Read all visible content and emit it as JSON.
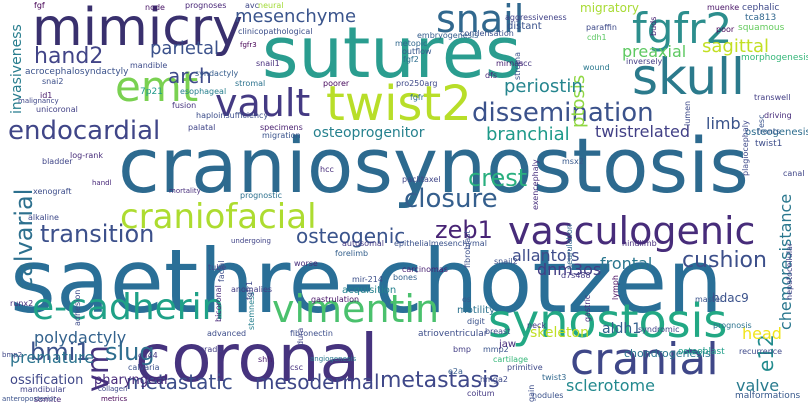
{
  "words": [
    {
      "t": "sutures",
      "c": "#2a9d8f"
    },
    {
      "t": "saethre-chotzen",
      "c": "#2a6f97"
    },
    {
      "t": "craniosynostosis",
      "c": "#2d6a8f"
    },
    {
      "t": "coronal",
      "c": "#46337e"
    },
    {
      "t": "mimicry",
      "c": "#39306e"
    },
    {
      "t": "synostosis",
      "c": "#22a884"
    },
    {
      "t": "twist2",
      "c": "#b8de29"
    },
    {
      "t": "skull",
      "c": "#2b7a8c"
    },
    {
      "t": "emt",
      "c": "#7ad151"
    },
    {
      "t": "fgfr2",
      "c": "#2c8e8d"
    },
    {
      "t": "snail",
      "c": "#31688e"
    },
    {
      "t": "vault",
      "c": "#443a83"
    },
    {
      "t": "cranial",
      "c": "#3f4788"
    },
    {
      "t": "vasculogenic",
      "c": "#472c7a"
    },
    {
      "t": "vimentin",
      "c": "#4ac16d"
    },
    {
      "t": "e-cadherin",
      "c": "#1fa187"
    },
    {
      "t": "craniofacial",
      "c": "#addc30"
    },
    {
      "t": "dissemination",
      "c": "#3b528b"
    },
    {
      "t": "endocardial",
      "c": "#404688"
    },
    {
      "t": "calvarial",
      "c": "#2d708e"
    },
    {
      "t": "hand2",
      "c": "#414487"
    },
    {
      "t": "mesenchyme",
      "c": "#3a548c"
    },
    {
      "t": "arch",
      "c": "#3e4a89"
    },
    {
      "t": "crest",
      "c": "#29af7f"
    },
    {
      "t": "closure",
      "c": "#355f8d"
    },
    {
      "t": "transition",
      "c": "#3c508b"
    },
    {
      "t": "zeb1",
      "c": "#482475"
    },
    {
      "t": "osteogenic",
      "c": "#3a548c"
    },
    {
      "t": "bmi1",
      "c": "#3b528b"
    },
    {
      "t": "slug",
      "c": "#2e6e8e"
    },
    {
      "t": "vm",
      "c": "#46327e"
    },
    {
      "t": "metastatic",
      "c": "#3d4e8a"
    },
    {
      "t": "metastasis",
      "c": "#3f4889"
    },
    {
      "t": "mesodermal",
      "c": "#3f4788"
    },
    {
      "t": "sagittal",
      "c": "#c2df23"
    },
    {
      "t": "periostin",
      "c": "#25858e"
    },
    {
      "t": "ptosis",
      "c": "#90d743"
    },
    {
      "t": "preaxial",
      "c": "#5ec962"
    },
    {
      "t": "parietal",
      "c": "#3b518b"
    },
    {
      "t": "cushion",
      "c": "#3c4f8a"
    },
    {
      "t": "branchial",
      "c": "#1f9a8a"
    },
    {
      "t": "twistrelated",
      "c": "#424086"
    },
    {
      "t": "limb",
      "c": "#3a538b"
    },
    {
      "t": "e12",
      "c": "#228b8d"
    },
    {
      "t": "valve",
      "c": "#297b8e"
    },
    {
      "t": "head",
      "c": "#f1e51d"
    },
    {
      "t": "polydactyly",
      "c": "#33628d"
    },
    {
      "t": "premature",
      "c": "#2c738e"
    },
    {
      "t": "skeleton",
      "c": "#c0df25"
    },
    {
      "t": "frontal",
      "c": "#2a768e"
    },
    {
      "t": "allantois",
      "c": "#3e4c8a"
    },
    {
      "t": "dnm3os",
      "c": "#433e85"
    },
    {
      "t": "aldh1",
      "c": "#34608d"
    },
    {
      "t": "sclerotome",
      "c": "#23898e"
    },
    {
      "t": "hdac9",
      "c": "#3b528b"
    },
    {
      "t": "chemoresistance",
      "c": "#2a778e"
    },
    {
      "t": "osteoprogenitor",
      "c": "#26818e"
    },
    {
      "t": "invasiveness",
      "c": "#287d8e"
    },
    {
      "t": "ossification",
      "c": "#3f4788"
    },
    {
      "t": "pharyngeal",
      "c": "#472a7a"
    },
    {
      "t": "migratory",
      "c": "#a8db34"
    },
    {
      "t": "chondrogenesis",
      "c": "#2b748e"
    },
    {
      "t": "osteogenesis",
      "c": "#2e6d8e"
    },
    {
      "t": "twist1",
      "c": "#3d4d8a"
    },
    {
      "t": "morphogenesis",
      "c": "#35b779"
    },
    {
      "t": "squamous",
      "c": "#65cb5e"
    },
    {
      "t": "cephalic",
      "c": "#3e4989"
    },
    {
      "t": "tca813",
      "c": "#31678e"
    },
    {
      "t": "fgf",
      "c": "#440154"
    },
    {
      "t": "node",
      "c": "#471365"
    },
    {
      "t": "prognoses",
      "c": "#482677"
    },
    {
      "t": "avc",
      "c": "#3f4788"
    },
    {
      "t": "aggressiveness",
      "c": "#414287"
    },
    {
      "t": "distant",
      "c": "#3b528b"
    },
    {
      "t": "muenke",
      "c": "#481467"
    },
    {
      "t": "paraffin",
      "c": "#3e4a89"
    },
    {
      "t": "cdh1",
      "c": "#5dc863"
    },
    {
      "t": "condensation",
      "c": "#3b518b"
    },
    {
      "t": "mirnas",
      "c": "#482071"
    },
    {
      "t": "ncc",
      "c": "#453781"
    },
    {
      "t": "wound",
      "c": "#2a788e"
    },
    {
      "t": "inversely",
      "c": "#433d84"
    },
    {
      "t": "poor",
      "c": "#46075a"
    },
    {
      "t": "buds",
      "c": "#482374"
    },
    {
      "t": "clinicopathological",
      "c": "#3c4f8a"
    },
    {
      "t": "embryogenesis",
      "c": "#355e8d"
    },
    {
      "t": "metopic",
      "c": "#31688e"
    },
    {
      "t": "syndactyly",
      "c": "#365d8d"
    },
    {
      "t": "mandible",
      "c": "#3e4c8a"
    },
    {
      "t": "stromal",
      "c": "#2c728e"
    },
    {
      "t": "esophageal",
      "c": "#277f8e"
    },
    {
      "t": "7p21",
      "c": "#1f998a"
    },
    {
      "t": "fusion",
      "c": "#46337f"
    },
    {
      "t": "haploinsufficiency",
      "c": "#3d4e8a"
    },
    {
      "t": "palatal",
      "c": "#404588"
    },
    {
      "t": "specimens",
      "c": "#481f70"
    },
    {
      "t": "migration",
      "c": "#3a548c"
    },
    {
      "t": "poorer",
      "c": "#46085c"
    },
    {
      "t": "pro250arg",
      "c": "#3e4989"
    },
    {
      "t": "dfs",
      "c": "#482878"
    },
    {
      "t": "outflow",
      "c": "#38598c"
    },
    {
      "t": "fgf2",
      "c": "#2e6f8e"
    },
    {
      "t": "snail1",
      "c": "#472f7d"
    },
    {
      "t": "unicoronal",
      "c": "#424186"
    },
    {
      "t": "id1",
      "c": "#48186a"
    },
    {
      "t": "malignancy",
      "c": "#3f4788"
    },
    {
      "t": "snai2",
      "c": "#3c4f8a"
    },
    {
      "t": "acrocephalosyndactyly",
      "c": "#3b528b"
    },
    {
      "t": "log-rank",
      "c": "#472c7a"
    },
    {
      "t": "bladder",
      "c": "#404688"
    },
    {
      "t": "xenograft",
      "c": "#3d4d8a"
    },
    {
      "t": "alkaline",
      "c": "#3e4989"
    },
    {
      "t": "handl",
      "c": "#482979"
    },
    {
      "t": "mortality",
      "c": "#472e7c"
    },
    {
      "t": "forelimb",
      "c": "#35608d"
    },
    {
      "t": "prognostic",
      "c": "#2d718e"
    },
    {
      "t": "hcc",
      "c": "#472d7b"
    },
    {
      "t": "paclitaxel",
      "c": "#404688"
    },
    {
      "t": "autosomal",
      "c": "#443983"
    },
    {
      "t": "epithelialmesenchymal",
      "c": "#3b528b"
    },
    {
      "t": "bones",
      "c": "#34618d"
    },
    {
      "t": "carcinomas",
      "c": "#482173"
    },
    {
      "t": "hindlimb",
      "c": "#472d7b"
    },
    {
      "t": "d7s488",
      "c": "#443a83"
    },
    {
      "t": "master",
      "c": "#3a548c"
    },
    {
      "t": "lymph",
      "c": "#460a5d"
    },
    {
      "t": "msx2",
      "c": "#38598c"
    },
    {
      "t": "snail2",
      "c": "#3c508b"
    },
    {
      "t": "fibroblast",
      "c": "#3c4f8a"
    },
    {
      "t": "exencephaly",
      "c": "#472f7d"
    },
    {
      "t": "neurulation",
      "c": "#31688e"
    },
    {
      "t": "runx2",
      "c": "#472e7c"
    },
    {
      "t": "somite",
      "c": "#482475"
    },
    {
      "t": "bmp2",
      "c": "#3f4788"
    },
    {
      "t": "mandibular",
      "c": "#414287"
    },
    {
      "t": "collagen",
      "c": "#3e4989"
    },
    {
      "t": "calvaria",
      "c": "#3b528b"
    },
    {
      "t": "cd44",
      "c": "#453882"
    },
    {
      "t": "grade",
      "c": "#433e85"
    },
    {
      "t": "shh",
      "c": "#481c6e"
    },
    {
      "t": "csc",
      "c": "#46317e"
    },
    {
      "t": "advanced",
      "c": "#3d4d8a"
    },
    {
      "t": "fibronectin",
      "c": "#3d4e8a"
    },
    {
      "t": "acquisition",
      "c": "#26828e"
    },
    {
      "t": "mir-214",
      "c": "#3c4f8a"
    },
    {
      "t": "anomalies",
      "c": "#433d84"
    },
    {
      "t": "tube",
      "c": "#404588"
    },
    {
      "t": "worse",
      "c": "#472d7b"
    },
    {
      "t": "gastrulation",
      "c": "#481668"
    },
    {
      "t": "motility",
      "c": "#2c728e"
    },
    {
      "t": "digit",
      "c": "#3b528b"
    },
    {
      "t": "atrioventricular",
      "c": "#3d4e8a"
    },
    {
      "t": "breast",
      "c": "#3e4c8a"
    },
    {
      "t": "neck",
      "c": "#443983"
    },
    {
      "t": "syndromic",
      "c": "#404588"
    },
    {
      "t": "prognosis",
      "c": "#2c738e"
    },
    {
      "t": "osteoblast",
      "c": "#1f9e89"
    },
    {
      "t": "recurrence",
      "c": "#3e4989"
    },
    {
      "t": "malformations",
      "c": "#38598c"
    },
    {
      "t": "nodules",
      "c": "#3b528b"
    },
    {
      "t": "coitum",
      "c": "#443983"
    },
    {
      "t": "twist3",
      "c": "#31688e"
    },
    {
      "t": "hmga2",
      "c": "#3e4a89"
    },
    {
      "t": "mmp2",
      "c": "#3a548c"
    },
    {
      "t": "e2a",
      "c": "#365c8d"
    },
    {
      "t": "cartilage",
      "c": "#35b779"
    },
    {
      "t": "primitive",
      "c": "#3e4989"
    },
    {
      "t": "gain",
      "c": "#3d4e8a"
    },
    {
      "t": "canal",
      "c": "#404688"
    },
    {
      "t": "fronts",
      "c": "#38598c"
    },
    {
      "t": "transwell",
      "c": "#433e85"
    },
    {
      "t": "driving",
      "c": "#472c7a"
    },
    {
      "t": "esc",
      "c": "#3a548c"
    },
    {
      "t": "fgfr",
      "c": "#3e4989"
    },
    {
      "t": "fgfr3",
      "c": "#2e6e8e"
    },
    {
      "t": "neural",
      "c": "#440154"
    },
    {
      "t": "bicoronal",
      "c": "#a2da37"
    },
    {
      "t": "stemness",
      "c": "#482979"
    },
    {
      "t": "stroma",
      "c": "#26818e"
    },
    {
      "t": "gastric",
      "c": "#3b528b"
    },
    {
      "t": "hepatocellular",
      "c": "#472f7d"
    },
    {
      "t": "adhesion",
      "c": "#424186"
    },
    {
      "t": "plagiocephaly",
      "c": "#3e4c8a"
    },
    {
      "t": "angiogenesis",
      "c": "#2a788e"
    },
    {
      "t": "undergoing",
      "c": "#414487"
    },
    {
      "t": "metrics",
      "c": "#440154"
    },
    {
      "t": "anteroposterior",
      "c": "#3b528b"
    },
    {
      "t": "facial",
      "c": "#3d4e8a"
    },
    {
      "t": "os",
      "c": "#38598c"
    },
    {
      "t": "fgfr1",
      "c": "#3e4989"
    },
    {
      "t": "bmp",
      "c": "#433e85"
    },
    {
      "t": "jaw",
      "c": "#472d7b"
    },
    {
      "t": "dura",
      "c": "#404688"
    },
    {
      "t": "lumen",
      "c": "#3e4a89"
    }
  ]
}
